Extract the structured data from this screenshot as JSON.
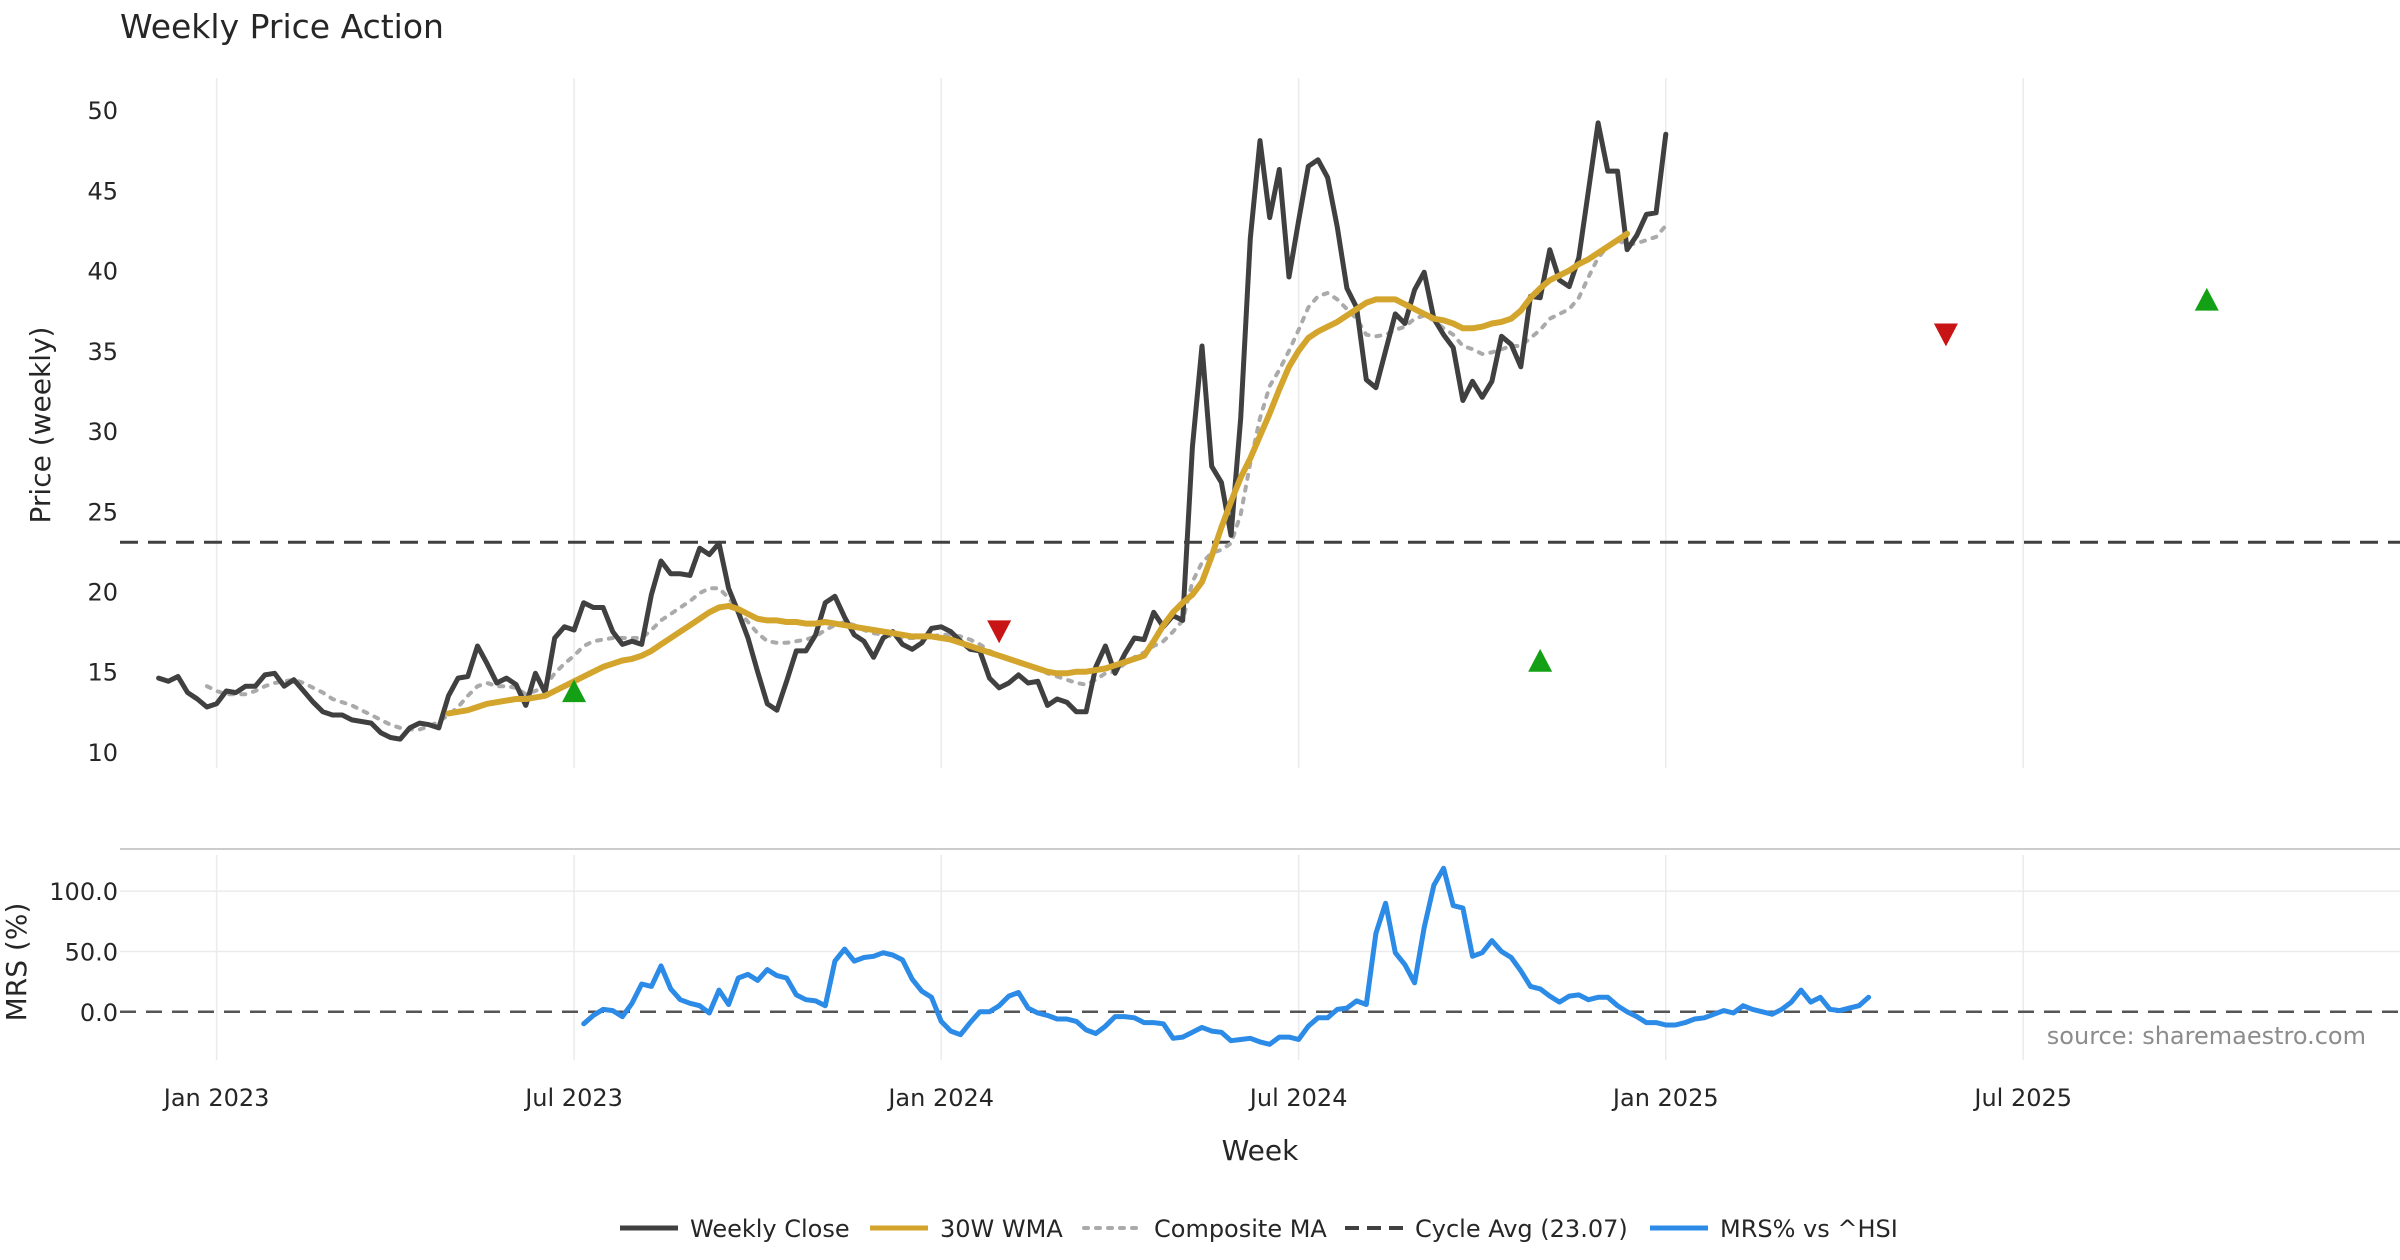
{
  "chart_data": {
    "type": "line",
    "title": "Weekly Price Action",
    "source_note": "source: sharemaestro.com",
    "xlabel": "Week",
    "x_tick_labels": [
      "Jan 2023",
      "Jul 2023",
      "Jan 2024",
      "Jul 2024",
      "Jan 2025",
      "Jul 2025"
    ],
    "x_tick_weeks": [
      6,
      43,
      81,
      118,
      156,
      193
    ],
    "x_range_weeks": [
      -4,
      232
    ],
    "price_panel": {
      "ylabel": "Price (weekly)",
      "ylim": [
        9,
        52
      ],
      "yticks": [
        10,
        15,
        20,
        25,
        30,
        35,
        40,
        45,
        50
      ],
      "cycle_avg": 23.07,
      "series": [
        {
          "name": "Weekly Close",
          "color": "#404040",
          "values": [
            14.6,
            14.4,
            14.7,
            13.7,
            13.3,
            12.8,
            13.0,
            13.8,
            13.7,
            14.1,
            14.1,
            14.8,
            14.9,
            14.1,
            14.5,
            13.8,
            13.1,
            12.5,
            12.3,
            12.3,
            12.0,
            11.9,
            11.8,
            11.2,
            10.9,
            10.8,
            11.5,
            11.8,
            11.7,
            11.5,
            13.5,
            14.6,
            14.7,
            16.6,
            15.5,
            14.3,
            14.6,
            14.2,
            12.9,
            14.9,
            13.7,
            17.1,
            17.8,
            17.6,
            19.3,
            19.0,
            19.0,
            17.5,
            16.7,
            16.9,
            16.7,
            19.8,
            21.9,
            21.1,
            21.1,
            21.0,
            22.7,
            22.3,
            23.0,
            20.2,
            18.7,
            17.1,
            15.0,
            13.0,
            12.6,
            14.4,
            16.3,
            16.3,
            17.3,
            19.3,
            19.7,
            18.4,
            17.3,
            16.9,
            15.9,
            17.1,
            17.5,
            16.7,
            16.4,
            16.8,
            17.7,
            17.8,
            17.5,
            16.9,
            16.4,
            16.3,
            14.6,
            14.0,
            14.3,
            14.8,
            14.3,
            14.4,
            12.9,
            13.3,
            13.1,
            12.5,
            12.5,
            15.3,
            16.6,
            14.9,
            16.1,
            17.1,
            17.0,
            18.7,
            17.8,
            18.5,
            18.2,
            29.0,
            35.3,
            27.8,
            26.8,
            23.5,
            30.8,
            42.0,
            48.1,
            43.3,
            46.3,
            39.6,
            43.1,
            46.5,
            46.9,
            45.8,
            42.7,
            38.9,
            37.7,
            33.2,
            32.7,
            35.0,
            37.3,
            36.7,
            38.8,
            39.9,
            37.0,
            36.0,
            35.2,
            31.9,
            33.1,
            32.1,
            33.1,
            35.9,
            35.4,
            34.0,
            38.4,
            38.3,
            41.3,
            39.4,
            39.0,
            40.8,
            45.0,
            49.2,
            46.2,
            46.2,
            41.3,
            42.2,
            43.5,
            43.6,
            48.5
          ]
        },
        {
          "name": "30W WMA",
          "color": "#d4a52c",
          "values": [
            null,
            null,
            null,
            null,
            null,
            null,
            null,
            null,
            null,
            null,
            null,
            null,
            null,
            null,
            null,
            null,
            null,
            null,
            null,
            null,
            null,
            null,
            null,
            null,
            null,
            null,
            null,
            null,
            null,
            null,
            12.4,
            12.5,
            12.6,
            12.8,
            13.0,
            13.1,
            13.2,
            13.3,
            13.3,
            13.4,
            13.5,
            13.8,
            14.1,
            14.4,
            14.7,
            15.0,
            15.3,
            15.5,
            15.7,
            15.8,
            16.0,
            16.3,
            16.7,
            17.1,
            17.5,
            17.9,
            18.3,
            18.7,
            19.0,
            19.1,
            18.9,
            18.6,
            18.3,
            18.2,
            18.2,
            18.1,
            18.1,
            18.0,
            18.0,
            18.1,
            18.0,
            17.9,
            17.8,
            17.7,
            17.6,
            17.5,
            17.4,
            17.3,
            17.2,
            17.2,
            17.2,
            17.1,
            17.0,
            16.8,
            16.6,
            16.4,
            16.2,
            16.0,
            15.8,
            15.6,
            15.4,
            15.2,
            15.0,
            14.9,
            14.9,
            15.0,
            15.0,
            15.1,
            15.2,
            15.4,
            15.6,
            15.8,
            16.0,
            16.9,
            17.9,
            18.7,
            19.3,
            19.8,
            20.6,
            22.2,
            24.0,
            25.6,
            27.1,
            28.3,
            29.7,
            31.1,
            32.6,
            34.0,
            35.0,
            35.8,
            36.2,
            36.5,
            36.8,
            37.2,
            37.6,
            38.0,
            38.2,
            38.2,
            38.2,
            37.9,
            37.6,
            37.3,
            37.0,
            36.9,
            36.7,
            36.4,
            36.4,
            36.5,
            36.7,
            36.8,
            37.0,
            37.5,
            38.3,
            38.9,
            39.4,
            39.7,
            40.0,
            40.4,
            40.7,
            41.1,
            41.5,
            41.9,
            42.3
          ]
        },
        {
          "name": "Composite MA",
          "color": "#aaaaaa",
          "values": [
            null,
            null,
            null,
            null,
            null,
            14.1,
            13.8,
            13.6,
            13.6,
            13.6,
            13.8,
            14.1,
            14.3,
            14.4,
            14.5,
            14.3,
            14.0,
            13.7,
            13.3,
            13.1,
            12.9,
            12.6,
            12.3,
            12.0,
            11.7,
            11.5,
            11.4,
            11.4,
            11.6,
            11.9,
            12.3,
            12.8,
            13.5,
            14.1,
            14.3,
            14.1,
            14.1,
            14.0,
            13.6,
            13.8,
            14.1,
            14.9,
            15.5,
            16.0,
            16.6,
            16.9,
            17.0,
            17.1,
            17.1,
            17.1,
            17.1,
            17.6,
            18.2,
            18.6,
            19.0,
            19.4,
            19.9,
            20.2,
            20.2,
            19.6,
            18.8,
            18.1,
            17.4,
            16.9,
            16.8,
            16.8,
            16.9,
            17.0,
            17.2,
            17.6,
            17.9,
            18.1,
            17.9,
            17.6,
            17.4,
            17.3,
            17.2,
            17.1,
            17.1,
            17.1,
            17.2,
            17.3,
            17.3,
            17.2,
            17.0,
            16.7,
            16.3,
            16.0,
            15.8,
            15.6,
            15.4,
            15.2,
            14.9,
            14.7,
            14.5,
            14.3,
            14.2,
            14.5,
            14.9,
            15.0,
            15.5,
            15.9,
            16.2,
            16.6,
            16.9,
            17.5,
            18.2,
            20.6,
            21.8,
            22.4,
            22.6,
            23.0,
            24.8,
            28.0,
            30.8,
            32.8,
            33.8,
            35.0,
            36.3,
            37.7,
            38.4,
            38.6,
            38.2,
            37.6,
            37.0,
            36.0,
            35.9,
            36.0,
            36.3,
            36.5,
            37.0,
            37.2,
            36.9,
            36.4,
            36.0,
            35.3,
            35.1,
            34.8,
            34.9,
            35.1,
            35.3,
            35.3,
            35.8,
            36.3,
            37.0,
            37.3,
            37.6,
            38.3,
            39.6,
            40.8,
            41.5,
            41.9,
            41.6,
            41.7,
            41.9,
            42.1,
            42.8
          ]
        }
      ],
      "signals": [
        {
          "week": 43,
          "value": 13.7,
          "kind": "buy",
          "color": "#14a014"
        },
        {
          "week": 87,
          "value": 17.6,
          "kind": "sell",
          "color": "#c81414"
        },
        {
          "week": 143,
          "value": 15.6,
          "kind": "buy",
          "color": "#14a014"
        },
        {
          "week": 185,
          "value": 36.1,
          "kind": "sell",
          "color": "#c81414"
        },
        {
          "week": 212,
          "value": 38.1,
          "kind": "buy",
          "color": "#14a014"
        }
      ]
    },
    "mrs_panel": {
      "ylabel": "MRS (%)",
      "ylim": [
        -40,
        130
      ],
      "yticks": [
        0,
        50,
        100
      ],
      "ytick_labels": [
        "0.0",
        "50.0",
        "100.0"
      ],
      "zero_line": 0,
      "series": [
        {
          "name": "MRS% vs ^HSI",
          "color": "#2b8be6",
          "values": [
            null,
            null,
            null,
            null,
            null,
            null,
            null,
            null,
            null,
            null,
            null,
            null,
            null,
            null,
            null,
            null,
            null,
            null,
            null,
            null,
            null,
            null,
            null,
            null,
            null,
            null,
            null,
            null,
            null,
            null,
            null,
            null,
            null,
            null,
            null,
            null,
            null,
            null,
            null,
            null,
            null,
            null,
            null,
            null,
            -10,
            -3,
            2,
            1,
            -4,
            7,
            23,
            21,
            38,
            19,
            10,
            7,
            5,
            -1,
            18,
            6,
            28,
            31,
            26,
            35,
            30,
            28,
            14,
            10,
            9,
            5,
            42,
            52,
            42,
            45,
            46,
            49,
            47,
            43,
            27,
            17,
            12,
            -8,
            -16,
            -19,
            -9,
            0,
            0,
            5,
            13,
            16,
            3,
            -1,
            -3,
            -6,
            -6,
            -8,
            -15,
            -18,
            -12,
            -4,
            -4,
            -5,
            -9,
            -9,
            -10,
            -22,
            -21,
            -17,
            -13,
            -16,
            -17,
            -24,
            -23,
            -22,
            -25,
            -27,
            -21,
            -21,
            -23,
            -12,
            -5,
            -5,
            2,
            3,
            9,
            6,
            65,
            90,
            49,
            39,
            24,
            70,
            105,
            119,
            88,
            86,
            46,
            49,
            59,
            50,
            45,
            34,
            21,
            19,
            13,
            8,
            13,
            14,
            10,
            12,
            12,
            5,
            0,
            -4,
            -9,
            -9,
            -11,
            -11,
            -9,
            -6,
            -5,
            -2,
            1,
            -1,
            5,
            2,
            0,
            -2,
            2,
            8,
            18,
            8,
            12,
            2,
            1,
            3,
            5,
            12
          ]
        }
      ]
    },
    "legend": [
      {
        "label": "Weekly Close",
        "color": "#404040",
        "style": "solid"
      },
      {
        "label": "30W WMA",
        "color": "#d4a52c",
        "style": "solid"
      },
      {
        "label": "Composite MA",
        "color": "#aaaaaa",
        "style": "dotted"
      },
      {
        "label": "Cycle Avg (23.07)",
        "color": "#404040",
        "style": "dashed"
      },
      {
        "label": "MRS% vs ^HSI",
        "color": "#2b8be6",
        "style": "solid"
      }
    ]
  }
}
